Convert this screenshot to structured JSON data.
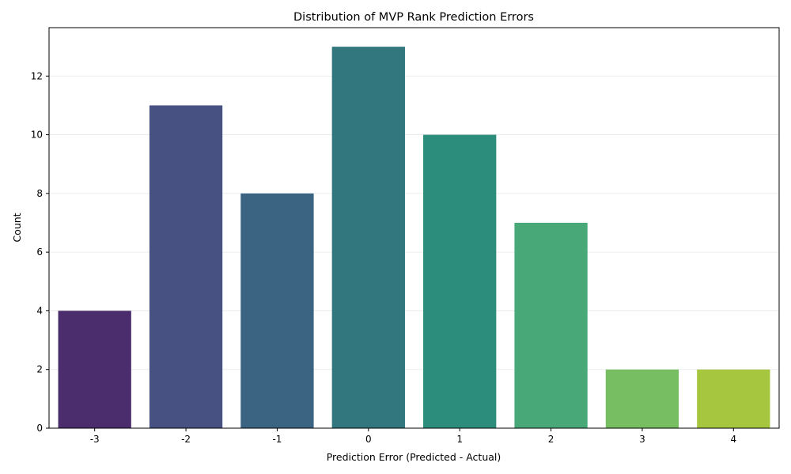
{
  "chart_data": {
    "type": "bar",
    "title": "Distribution of MVP Rank Prediction Errors",
    "xlabel": "Prediction Error (Predicted - Actual)",
    "ylabel": "Count",
    "categories": [
      "-3",
      "-2",
      "-1",
      "0",
      "1",
      "2",
      "3",
      "4"
    ],
    "values": [
      4,
      11,
      8,
      13,
      10,
      7,
      2,
      2
    ],
    "colors": [
      "#4b2d6e",
      "#475182",
      "#3b6382",
      "#32767e",
      "#2c8d7c",
      "#48a877",
      "#77be62",
      "#a5c63e"
    ],
    "ylim": [
      0,
      13.65
    ],
    "yticks": [
      0,
      2,
      4,
      6,
      8,
      10,
      12
    ],
    "grid": "y-only",
    "legend": "none"
  }
}
